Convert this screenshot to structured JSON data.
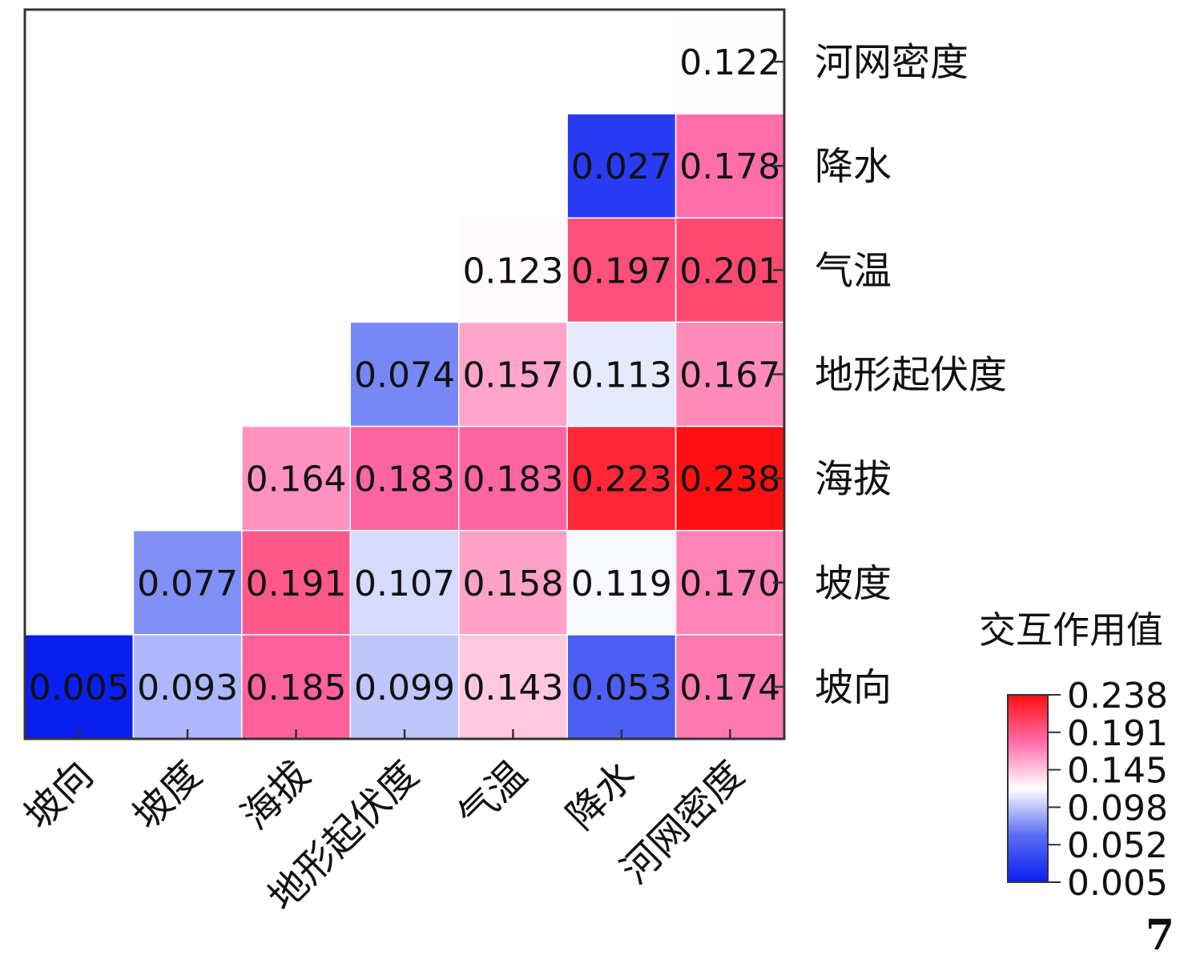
{
  "chart_data": {
    "type": "heatmap",
    "variables": [
      "坡向",
      "坡度",
      "海拔",
      "地形起伏度",
      "气温",
      "降水",
      "河网密度"
    ],
    "matrix": [
      [
        0.005,
        0.093,
        0.185,
        0.099,
        0.143,
        0.053,
        0.174
      ],
      [
        null,
        0.077,
        0.191,
        0.107,
        0.158,
        0.119,
        0.17
      ],
      [
        null,
        null,
        0.164,
        0.183,
        0.183,
        0.223,
        0.238
      ],
      [
        null,
        null,
        null,
        0.074,
        0.157,
        0.113,
        0.167
      ],
      [
        null,
        null,
        null,
        null,
        0.123,
        0.197,
        0.201
      ],
      [
        null,
        null,
        null,
        null,
        null,
        0.027,
        0.178
      ],
      [
        null,
        null,
        null,
        null,
        null,
        null,
        0.122
      ]
    ],
    "matrix_note": "matrix[row][col]; row = variable on right axis, col = variable on bottom axis",
    "colorbar": {
      "title": "交互作用值",
      "ticks": [
        "0.238",
        "0.191",
        "0.145",
        "0.098",
        "0.052",
        "0.005"
      ],
      "range": [
        0.005,
        0.238
      ],
      "colors": {
        "low": "#0a1ef0",
        "mid": "#ffffff",
        "high": "#ff1010"
      }
    },
    "panel_label": "7"
  }
}
